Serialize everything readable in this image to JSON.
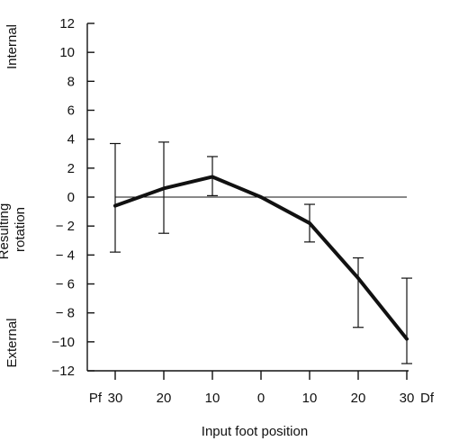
{
  "chart_data": {
    "type": "line",
    "categories": [
      "30",
      "20",
      "10",
      "0",
      "10",
      "20",
      "30"
    ],
    "x_end_labels": {
      "left": "Pf",
      "right": "Df"
    },
    "xlabel": "Input foot position",
    "ylabel": "Resulting\nrotation",
    "y_top_label": "Internal",
    "y_bottom_label": "External",
    "ylim": [
      -12,
      12
    ],
    "yticks": [
      -12,
      -10,
      -8,
      -6,
      -4,
      -2,
      0,
      2,
      4,
      6,
      8,
      10,
      12
    ],
    "ytick_labels": [
      "−12",
      "−10",
      "− 8",
      "− 6",
      "− 4",
      "− 2",
      "0",
      "2",
      "4",
      "6",
      "8",
      "10",
      "12"
    ],
    "series": [
      {
        "values": [
          -0.6,
          0.6,
          1.4,
          0.0,
          -1.8,
          -5.6,
          -9.8
        ],
        "error_low": [
          -3.8,
          -2.5,
          0.1,
          null,
          -3.1,
          -9.0,
          -11.5
        ],
        "error_high": [
          3.7,
          3.8,
          2.8,
          null,
          -0.5,
          -4.2,
          -5.6
        ]
      }
    ],
    "reference_line_y": 0,
    "grid": false,
    "legend": "none"
  }
}
